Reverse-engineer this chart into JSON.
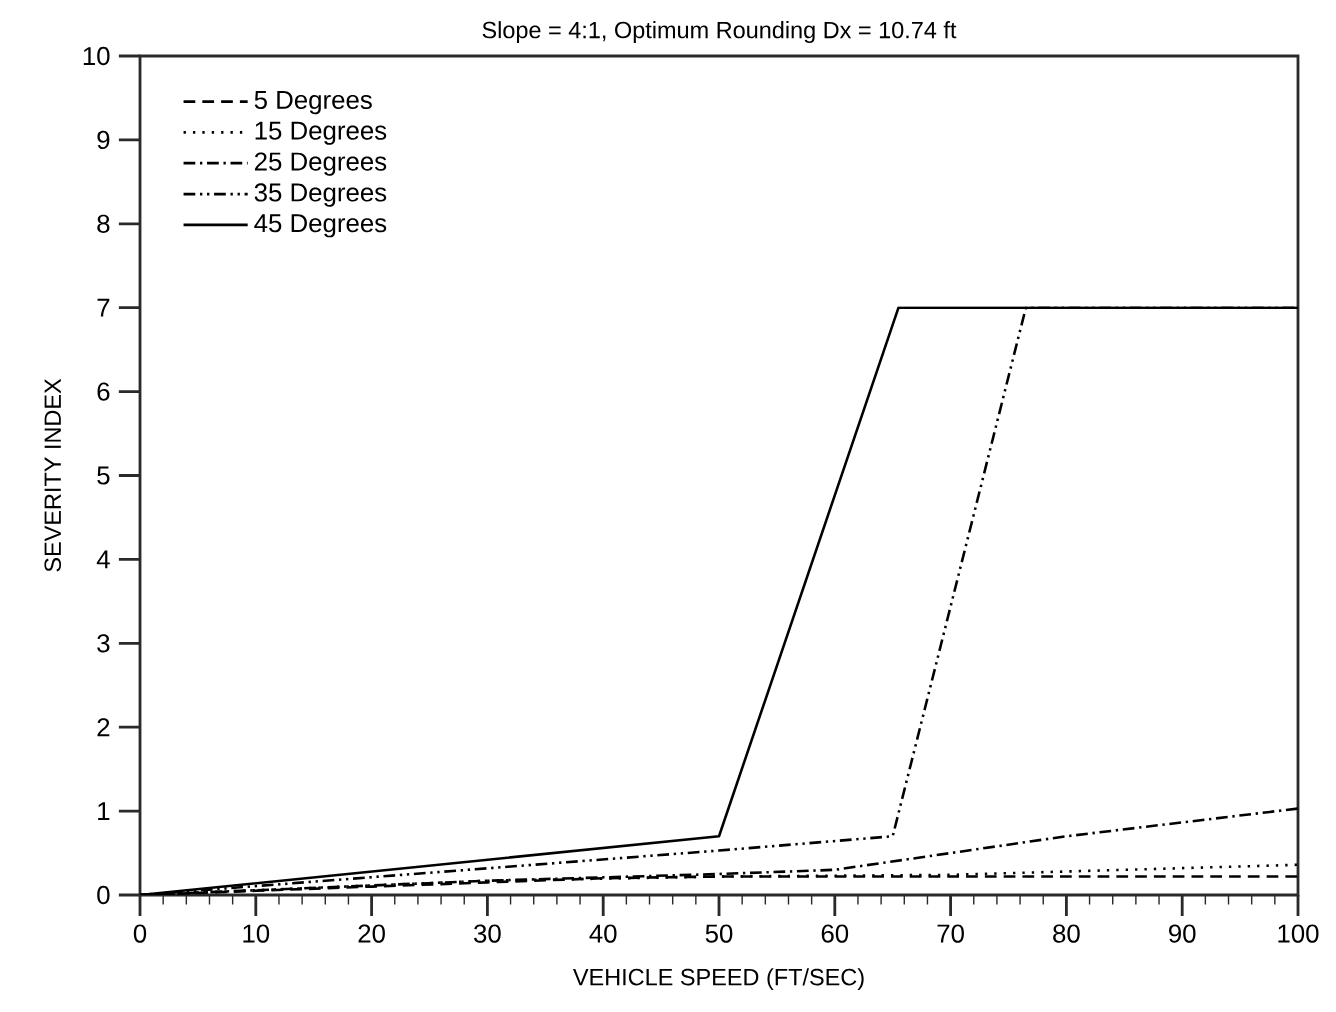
{
  "chart_data": {
    "type": "line",
    "title": "Slope = 4:1,  Optimum Rounding Dx = 10.74 ft",
    "xlabel": "VEHICLE SPEED (FT/SEC)",
    "ylabel": "SEVERITY INDEX",
    "xlim": [
      0,
      100
    ],
    "ylim": [
      0,
      10
    ],
    "xticks": [
      0,
      10,
      20,
      30,
      40,
      50,
      60,
      70,
      80,
      90,
      100
    ],
    "yticks": [
      0,
      1,
      2,
      3,
      4,
      5,
      6,
      7,
      8,
      9,
      10
    ],
    "grid": false,
    "legend": "top left",
    "series": [
      {
        "name": "5 Degrees",
        "color": "#000000",
        "line_style": "dashed",
        "x": [
          0,
          10,
          20,
          30,
          40,
          50,
          100
        ],
        "values": [
          0,
          0.05,
          0.1,
          0.15,
          0.2,
          0.22,
          0.22
        ]
      },
      {
        "name": "15 Degrees",
        "color": "#000000",
        "line_style": "dotted",
        "x": [
          0,
          30,
          50,
          70,
          100
        ],
        "values": [
          0,
          0.17,
          0.22,
          0.24,
          0.36
        ]
      },
      {
        "name": "25 Degrees",
        "color": "#000000",
        "line_style": "dashdotted",
        "x": [
          0,
          30,
          50,
          60,
          70,
          80,
          100
        ],
        "values": [
          0,
          0.17,
          0.25,
          0.3,
          0.5,
          0.7,
          1.03
        ]
      },
      {
        "name": "35 Degrees",
        "color": "#000000",
        "line_style": "dashdotdotted",
        "x": [
          0,
          50,
          65,
          76.5,
          100
        ],
        "values": [
          0,
          0.53,
          0.7,
          7,
          7
        ]
      },
      {
        "name": "45 Degrees",
        "color": "#000000",
        "line_style": "solid",
        "x": [
          0,
          50,
          65.5,
          100
        ],
        "values": [
          0,
          0.7,
          7,
          7
        ]
      }
    ]
  }
}
